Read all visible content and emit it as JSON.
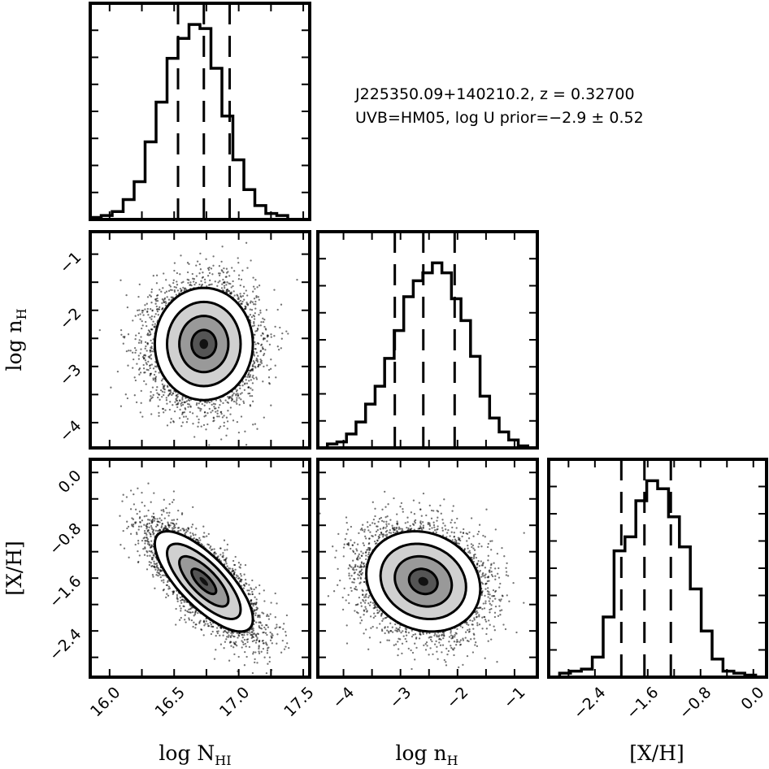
{
  "chart_data": {
    "type": "corner",
    "annotation": {
      "line1": "J225350.09+140210.2, z = 0.32700",
      "line2": "UVB=HM05, log U prior=−2.9 ± 0.52"
    },
    "parameters": [
      {
        "label": "log N_HI",
        "display_label": "log N",
        "subscript": "HI",
        "range": [
          15.85,
          17.55
        ],
        "ticks": [
          16.0,
          16.5,
          17.0,
          17.5
        ],
        "tick_labels": [
          "16.0",
          "16.5",
          "17.0",
          "17.5"
        ],
        "quantiles": [
          16.53,
          16.73,
          16.93
        ],
        "median": 16.73,
        "sigma": 0.19,
        "histogram": [
          0.01,
          0.02,
          0.04,
          0.1,
          0.19,
          0.39,
          0.59,
          0.81,
          0.91,
          0.98,
          0.96,
          0.76,
          0.52,
          0.3,
          0.15,
          0.07,
          0.03,
          0.02,
          0.0,
          0.0
        ]
      },
      {
        "label": "log n_H",
        "display_label": "log n",
        "subscript": "H",
        "range": [
          -4.45,
          -0.6
        ],
        "ticks": [
          -4,
          -3,
          -2,
          -1
        ],
        "tick_labels": [
          "−4",
          "−3",
          "−2",
          "−1"
        ],
        "quantiles": [
          -3.1,
          -2.6,
          -2.05
        ],
        "median": -2.6,
        "sigma": 0.5,
        "histogram": [
          0.0,
          0.02,
          0.03,
          0.07,
          0.13,
          0.22,
          0.31,
          0.45,
          0.59,
          0.76,
          0.84,
          0.88,
          0.93,
          0.88,
          0.75,
          0.64,
          0.46,
          0.26,
          0.15,
          0.08,
          0.04,
          0.01,
          0.0
        ]
      },
      {
        "label": "[X/H]",
        "display_label": "[X/H]",
        "subscript": "",
        "range": [
          -3.1,
          0.2
        ],
        "ticks": [
          -2.4,
          -1.6,
          -0.8,
          0.0
        ],
        "tick_labels": [
          "−2.4",
          "−1.6",
          "−0.8",
          "0.0"
        ],
        "quantiles": [
          -2.0,
          -1.65,
          -1.25
        ],
        "median": -1.65,
        "sigma": 0.38,
        "histogram": [
          0.0,
          0.02,
          0.03,
          0.04,
          0.1,
          0.3,
          0.63,
          0.7,
          0.88,
          0.98,
          0.94,
          0.8,
          0.65,
          0.44,
          0.23,
          0.09,
          0.03,
          0.02,
          0.01,
          0.0
        ]
      }
    ],
    "correlations": {
      "1_0": 0.0,
      "2_0": -0.75,
      "2_1": -0.15
    },
    "contour_levels": [
      0.5,
      1.0,
      1.5,
      2.0
    ],
    "colors": {
      "hist_line": "#000000",
      "scatter": "#000000",
      "contour": "#000000"
    }
  }
}
